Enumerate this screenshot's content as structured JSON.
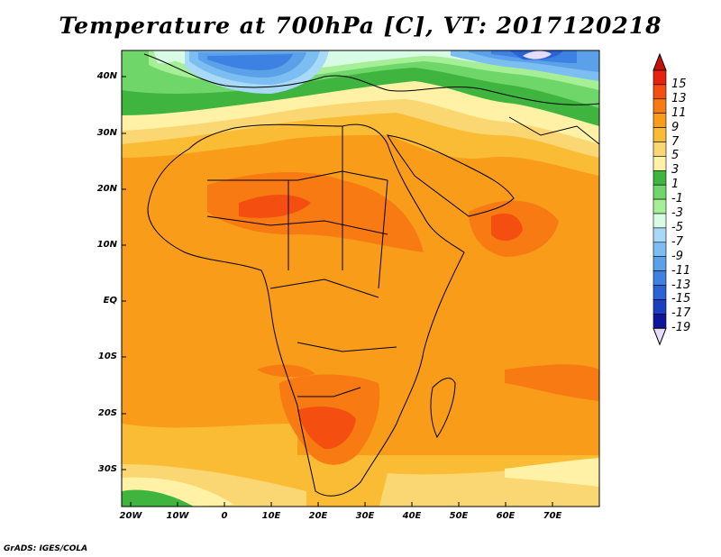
{
  "title": "Temperature at 700hPa [C], VT: 2017120218",
  "credit": "GrADS: IGES/COLA",
  "lat_labels": [
    "40N",
    "30N",
    "20N",
    "10N",
    "EQ",
    "10S",
    "20S",
    "30S"
  ],
  "lon_labels": [
    "20W",
    "10W",
    "0",
    "10E",
    "20E",
    "30E",
    "40E",
    "50E",
    "60E",
    "70E"
  ],
  "colorbar": {
    "labels": [
      "15",
      "13",
      "11",
      "9",
      "7",
      "5",
      "3",
      "1",
      "-1",
      "-3",
      "-5",
      "-7",
      "-9",
      "-11",
      "-13",
      "-15",
      "-17",
      "-19"
    ],
    "colors": [
      "#e8200f",
      "#f44f10",
      "#f77b12",
      "#f99c1a",
      "#fbbc35",
      "#fad772",
      "#fff2a6",
      "#3fb53f",
      "#6fd66a",
      "#a6ef97",
      "#d8fbe6",
      "#a8d9f7",
      "#7cbdf2",
      "#5ba1ea",
      "#3d82e2",
      "#2a63d6",
      "#1c40bf",
      "#10169b"
    ],
    "top_arrow_color": "#c8100a",
    "bottom_arrow_color": "#e6dcfa"
  },
  "map_colors": {
    "ocean_background": "#f99c1a",
    "coast_color": "#000000"
  }
}
